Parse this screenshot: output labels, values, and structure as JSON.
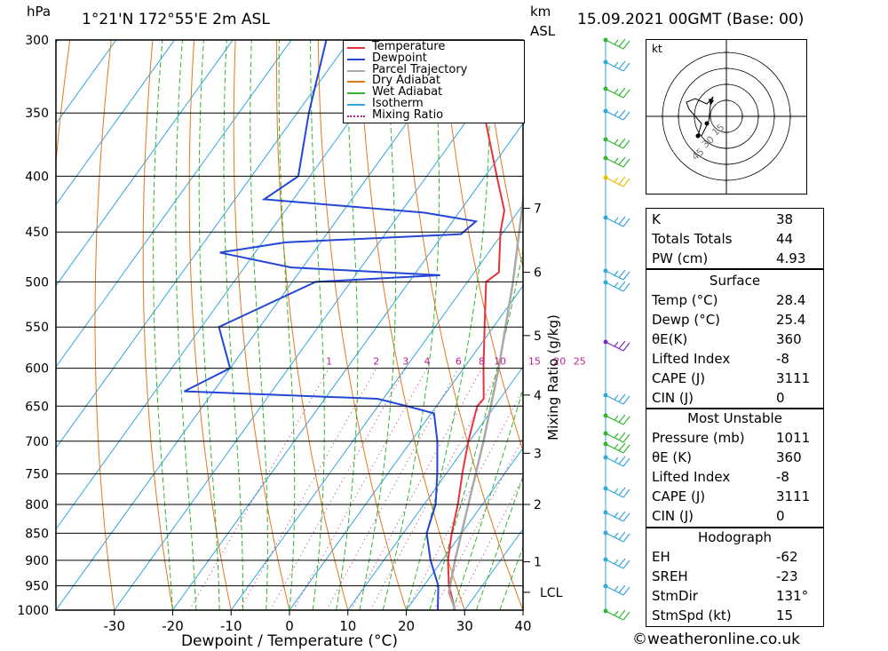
{
  "header": {
    "unit_left": "hPa",
    "location": "1°21'N  172°55'E  2m  ASL",
    "unit_km": "km",
    "unit_asl": "ASL",
    "datetime": "15.09.2021  00GMT  (Base: 00)"
  },
  "footer": {
    "copyright": "©weatheronline.co.uk"
  },
  "chart_data": {
    "type": "line",
    "title": "",
    "xlabel": "Dewpoint / Temperature (°C)",
    "ylabel": "hPa",
    "secondary_ylabel": "Mixing Ratio (g/kg)",
    "xlim": [
      -40,
      40
    ],
    "ylim": [
      1000,
      300
    ],
    "pressure_ticks": [
      300,
      350,
      400,
      450,
      500,
      550,
      600,
      650,
      700,
      750,
      800,
      850,
      900,
      950,
      1000
    ],
    "temp_ticks": [
      -30,
      -20,
      -10,
      0,
      10,
      20,
      30,
      40
    ],
    "km_ticks": [
      {
        "label": "7",
        "p": 428
      },
      {
        "label": "6",
        "p": 490
      },
      {
        "label": "5",
        "p": 560
      },
      {
        "label": "4",
        "p": 635
      },
      {
        "label": "3",
        "p": 718
      },
      {
        "label": "2",
        "p": 800
      },
      {
        "label": "1",
        "p": 903
      },
      {
        "label": "LCL",
        "p": 963
      }
    ],
    "mixing_ratio_labels": [
      "1",
      "2",
      "3",
      "4",
      "6",
      "8",
      "10",
      "15",
      "20",
      "25"
    ],
    "legend": {
      "placement": "top-right",
      "entries": [
        {
          "name": "Temperature",
          "color": "#e8333a",
          "style": "solid"
        },
        {
          "name": "Dewpoint",
          "color": "#2446d6",
          "style": "solid"
        },
        {
          "name": "Parcel Trajectory",
          "color": "#a9a9a9",
          "style": "solid"
        },
        {
          "name": "Dry Adiabat",
          "color": "#e07a20",
          "style": "solid"
        },
        {
          "name": "Wet Adiabat",
          "color": "#33b533",
          "style": "solid"
        },
        {
          "name": "Isotherm",
          "color": "#33a6dd",
          "style": "solid"
        },
        {
          "name": "Mixing Ratio",
          "color": "#c0208c",
          "style": "dotted"
        }
      ]
    },
    "series": [
      {
        "name": "Temperature",
        "color": "#e8333a",
        "points": [
          {
            "p": 1000,
            "t": 28.4
          },
          {
            "p": 950,
            "t": 24.3
          },
          {
            "p": 900,
            "t": 21.0
          },
          {
            "p": 850,
            "t": 18.3
          },
          {
            "p": 800,
            "t": 15.8
          },
          {
            "p": 750,
            "t": 12.8
          },
          {
            "p": 700,
            "t": 9.8
          },
          {
            "p": 650,
            "t": 7.0
          },
          {
            "p": 640,
            "t": 7.2
          },
          {
            "p": 600,
            "t": 3.4
          },
          {
            "p": 550,
            "t": -1.5
          },
          {
            "p": 500,
            "t": -6.8
          },
          {
            "p": 490,
            "t": -5.8
          },
          {
            "p": 450,
            "t": -10.5
          },
          {
            "p": 430,
            "t": -12.5
          },
          {
            "p": 400,
            "t": -18.0
          },
          {
            "p": 350,
            "t": -28.0
          },
          {
            "p": 300,
            "t": -39.0
          }
        ]
      },
      {
        "name": "Dewpoint",
        "color": "#2446d6",
        "points": [
          {
            "p": 1000,
            "t": 25.4
          },
          {
            "p": 950,
            "t": 22.5
          },
          {
            "p": 900,
            "t": 18.0
          },
          {
            "p": 850,
            "t": 14.0
          },
          {
            "p": 800,
            "t": 12.0
          },
          {
            "p": 750,
            "t": 8.5
          },
          {
            "p": 700,
            "t": 4.5
          },
          {
            "p": 660,
            "t": 0.5
          },
          {
            "p": 650,
            "t": -5.0
          },
          {
            "p": 640,
            "t": -11.0
          },
          {
            "p": 630,
            "t": -45.0
          },
          {
            "p": 600,
            "t": -40.0
          },
          {
            "p": 550,
            "t": -47.0
          },
          {
            "p": 500,
            "t": -36.0
          },
          {
            "p": 493,
            "t": -15.5
          },
          {
            "p": 485,
            "t": -42.0
          },
          {
            "p": 470,
            "t": -56.0
          },
          {
            "p": 460,
            "t": -46.0
          },
          {
            "p": 452,
            "t": -17.0
          },
          {
            "p": 440,
            "t": -16.0
          },
          {
            "p": 432,
            "t": -26.0
          },
          {
            "p": 420,
            "t": -55.0
          },
          {
            "p": 400,
            "t": -52.0
          },
          {
            "p": 350,
            "t": -58.0
          },
          {
            "p": 300,
            "t": -64.0
          }
        ]
      },
      {
        "name": "Parcel Trajectory",
        "color": "#a9a9a9",
        "points": [
          {
            "p": 1000,
            "t": 28.4
          },
          {
            "p": 963,
            "t": 25.1
          },
          {
            "p": 900,
            "t": 22.2
          },
          {
            "p": 800,
            "t": 17.6
          },
          {
            "p": 700,
            "t": 12.4
          },
          {
            "p": 600,
            "t": 6.0
          },
          {
            "p": 500,
            "t": -2.2
          },
          {
            "p": 400,
            "t": -13.0
          },
          {
            "p": 300,
            "t": -29.0
          }
        ]
      }
    ]
  },
  "hodograph": {
    "unit": "kt",
    "ring_labels": [
      "15",
      "30",
      "45"
    ]
  },
  "wind_profile": {
    "note_color": "#33a6dd"
  },
  "indices": {
    "K": {
      "label": "K",
      "value": "38"
    },
    "TT": {
      "label": "Totals Totals",
      "value": "44"
    },
    "PW": {
      "label": "PW (cm)",
      "value": "4.93"
    }
  },
  "surface": {
    "title": "Surface",
    "temp": {
      "label": "Temp (°C)",
      "value": "28.4"
    },
    "dewp": {
      "label": "Dewp (°C)",
      "value": "25.4"
    },
    "theta": {
      "label": "θE(K)",
      "value": "360"
    },
    "li": {
      "label": "Lifted Index",
      "value": "-8"
    },
    "cape": {
      "label": "CAPE (J)",
      "value": "3111"
    },
    "cin": {
      "label": "CIN (J)",
      "value": "0"
    }
  },
  "most_unstable": {
    "title": "Most Unstable",
    "pressure": {
      "label": "Pressure (mb)",
      "value": "1011"
    },
    "theta": {
      "label": "θE (K)",
      "value": "360"
    },
    "li": {
      "label": "Lifted Index",
      "value": "-8"
    },
    "cape": {
      "label": "CAPE (J)",
      "value": "3111"
    },
    "cin": {
      "label": "CIN (J)",
      "value": "0"
    }
  },
  "hodo_stats": {
    "title": "Hodograph",
    "eh": {
      "label": "EH",
      "value": "-62"
    },
    "sreh": {
      "label": "SREH",
      "value": "-23"
    },
    "stmdir": {
      "label": "StmDir",
      "value": "131°"
    },
    "stmspd": {
      "label": "StmSpd (kt)",
      "value": "15"
    }
  }
}
